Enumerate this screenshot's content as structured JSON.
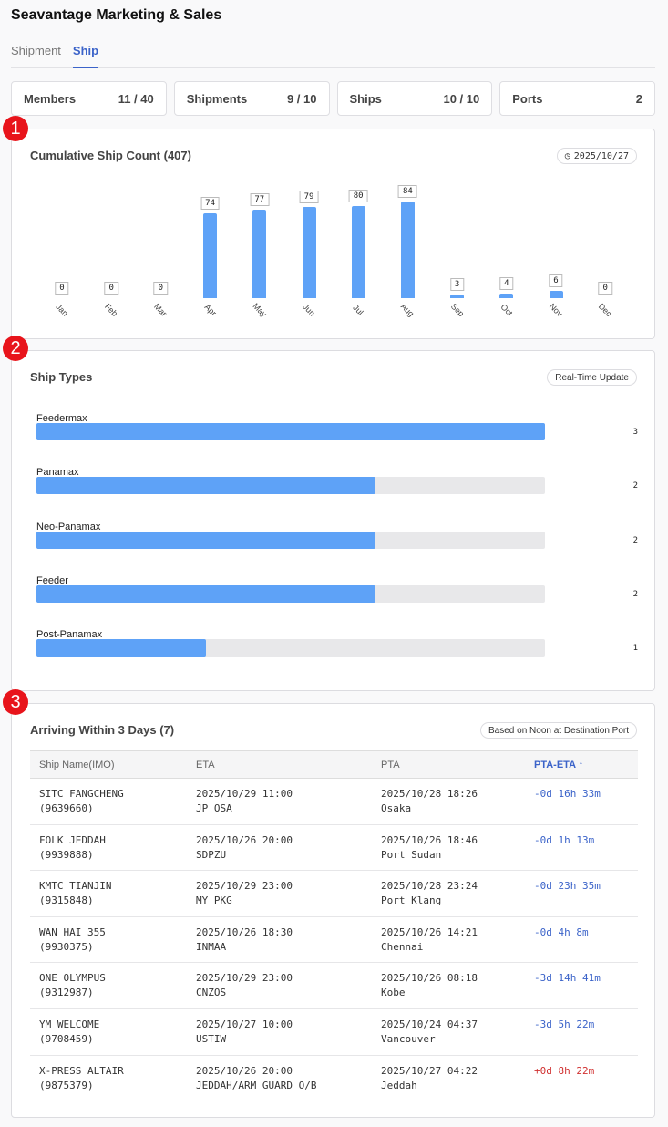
{
  "header": {
    "title": "Seavantage Marketing & Sales"
  },
  "tabs": [
    {
      "label": "Shipment",
      "active": false
    },
    {
      "label": "Ship",
      "active": true
    }
  ],
  "stats": [
    {
      "label": "Members",
      "value": "11 / 40"
    },
    {
      "label": "Shipments",
      "value": "9 / 10"
    },
    {
      "label": "Ships",
      "value": "10 / 10"
    },
    {
      "label": "Ports",
      "value": "2"
    }
  ],
  "markers": [
    "1",
    "2",
    "3"
  ],
  "colors": {
    "accent": "#3b63c9",
    "bar": "#5ea2f7",
    "positive": "#d03030",
    "marker": "#e8141b"
  },
  "chart_data": [
    {
      "type": "bar",
      "title": "Cumulative Ship Count (407)",
      "date_badge": "2025/10/27",
      "date_icon": "clock-icon",
      "categories": [
        "Jan",
        "Feb",
        "Mar",
        "Apr",
        "May",
        "Jun",
        "Jul",
        "Aug",
        "Sep",
        "Oct",
        "Nov",
        "Dec"
      ],
      "values": [
        0,
        0,
        0,
        74,
        77,
        79,
        80,
        84,
        3,
        4,
        6,
        0
      ]
    },
    {
      "type": "bar",
      "orientation": "horizontal",
      "title": "Ship Types",
      "badge": "Real-Time Update",
      "categories": [
        "Feedermax",
        "Panamax",
        "Neo-Panamax",
        "Feeder",
        "Post-Panamax"
      ],
      "values": [
        3,
        2,
        2,
        2,
        1
      ],
      "max": 3
    }
  ],
  "arrivals": {
    "title": "Arriving Within 3 Days (7)",
    "badge": "Based on Noon at Destination Port",
    "columns": [
      "Ship Name(IMO)",
      "ETA",
      "PTA",
      "PTA-ETA ↑"
    ],
    "rows": [
      {
        "name": "SITC FANGCHENG",
        "imo": "(9639660)",
        "eta": "2025/10/29 11:00",
        "eta_port": "JP OSA",
        "pta": "2025/10/28 18:26",
        "pta_port": "Osaka",
        "diff": "-0d 16h 33m",
        "sign": "neg"
      },
      {
        "name": "FOLK JEDDAH",
        "imo": "(9939888)",
        "eta": "2025/10/26 20:00",
        "eta_port": "SDPZU",
        "pta": "2025/10/26 18:46",
        "pta_port": "Port Sudan",
        "diff": "-0d 1h 13m",
        "sign": "neg"
      },
      {
        "name": "KMTC TIANJIN",
        "imo": "(9315848)",
        "eta": "2025/10/29 23:00",
        "eta_port": "MY PKG",
        "pta": "2025/10/28 23:24",
        "pta_port": "Port Klang",
        "diff": "-0d 23h 35m",
        "sign": "neg"
      },
      {
        "name": "WAN HAI 355",
        "imo": "(9930375)",
        "eta": "2025/10/26 18:30",
        "eta_port": "INMAA",
        "pta": "2025/10/26 14:21",
        "pta_port": "Chennai",
        "diff": "-0d 4h 8m",
        "sign": "neg"
      },
      {
        "name": "ONE OLYMPUS",
        "imo": "(9312987)",
        "eta": "2025/10/29 23:00",
        "eta_port": "CNZOS",
        "pta": "2025/10/26 08:18",
        "pta_port": "Kobe",
        "diff": "-3d 14h 41m",
        "sign": "neg"
      },
      {
        "name": "YM WELCOME",
        "imo": "(9708459)",
        "eta": "2025/10/27 10:00",
        "eta_port": "USTIW",
        "pta": "2025/10/24 04:37",
        "pta_port": "Vancouver",
        "diff": "-3d 5h 22m",
        "sign": "neg"
      },
      {
        "name": "X-PRESS ALTAIR",
        "imo": "(9875379)",
        "eta": "2025/10/26 20:00",
        "eta_port": "JEDDAH/ARM GUARD O/B",
        "pta": "2025/10/27 04:22",
        "pta_port": "Jeddah",
        "diff": "+0d 8h 22m",
        "sign": "pos"
      }
    ]
  }
}
